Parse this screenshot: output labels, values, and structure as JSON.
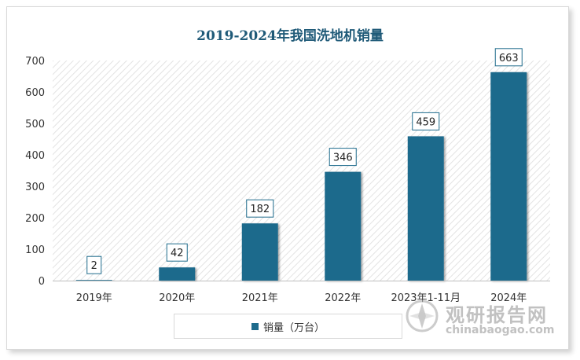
{
  "chart_data": {
    "type": "bar",
    "title": "2019-2024年我国洗地机销量",
    "categories": [
      "2019年",
      "2020年",
      "2021年",
      "2022年",
      "2023年1-11月",
      "2024年"
    ],
    "series": [
      {
        "name": "销量（万台）",
        "values": [
          2,
          42,
          182,
          346,
          459,
          663
        ]
      }
    ],
    "data_labels": [
      "2",
      "42",
      "182",
      "346",
      "459",
      "663"
    ],
    "ylim": [
      0,
      700
    ],
    "yticks": [
      0,
      100,
      200,
      300,
      400,
      500,
      600,
      700
    ],
    "grid": false,
    "legend_position": "bottom",
    "colors": {
      "bar": "#1e6b8c",
      "title": "#1f5a78",
      "plot_bg_hatch": "#e6e6e6"
    }
  },
  "watermark": {
    "text_cn": "观研报告网",
    "text_en": "chinabaogao.com",
    "icon": "compass-logo-icon"
  }
}
